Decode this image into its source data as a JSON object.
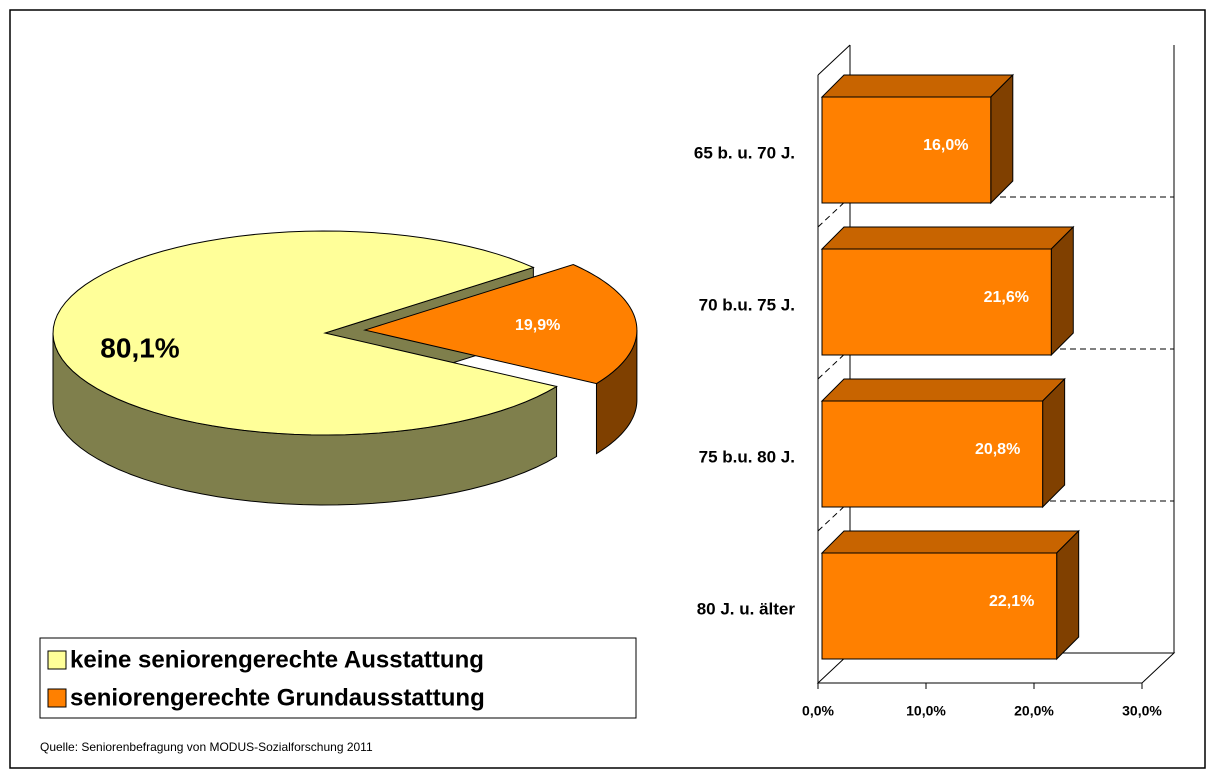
{
  "chart_data": [
    {
      "type": "pie3d",
      "series": [
        {
          "name": "keine seniorengerechte Ausstattung",
          "color": "#ffff99"
        },
        {
          "name": "seniorengerechte Grundausstattung",
          "color": "#ff8000"
        }
      ],
      "values": [
        80.1,
        19.9
      ],
      "value_labels": [
        "80,1%",
        "19,9%"
      ]
    },
    {
      "type": "hbar3d",
      "categories": [
        "65 b. u. 70 J.",
        "70 b.u. 75 J.",
        "75 b.u. 80 J.",
        "80 J. u. älter"
      ],
      "values": [
        16.0,
        21.6,
        20.8,
        22.1
      ],
      "value_labels": [
        "16,0%",
        "21,6%",
        "20,8%",
        "22,1%"
      ],
      "color": "#ff8000",
      "xlim": [
        0,
        30
      ],
      "xticks": [
        {
          "value": 0,
          "label": "0,0%"
        },
        {
          "value": 10,
          "label": "10,0%"
        },
        {
          "value": 20,
          "label": "20,0%"
        },
        {
          "value": 30,
          "label": "30,0%"
        }
      ],
      "grid": true
    }
  ],
  "source": "Quelle: Seniorenbefragung von MODUS-Sozialforschung 2011"
}
